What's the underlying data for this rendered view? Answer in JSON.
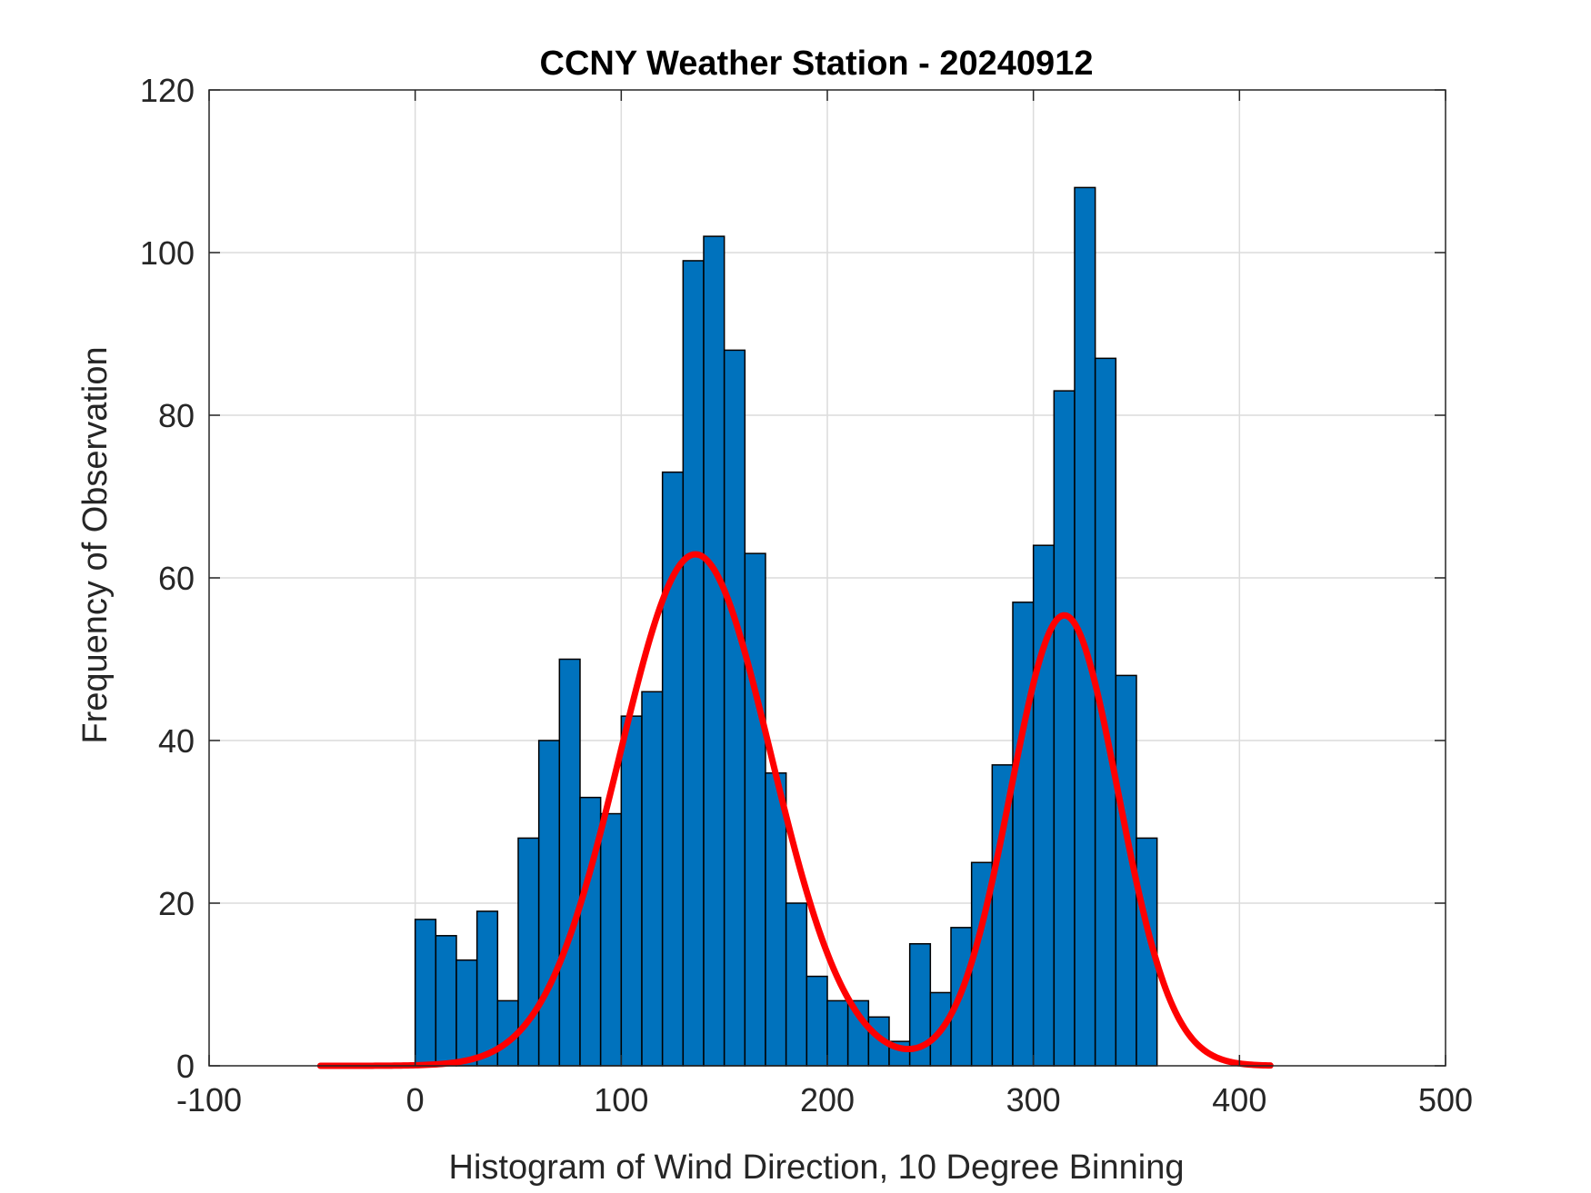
{
  "chart_data": {
    "type": "bar",
    "title": "CCNY Weather Station - 20240912",
    "xlabel": "Histogram of Wind Direction, 10 Degree Binning",
    "ylabel": "Frequency of Observation",
    "xlim": [
      -100,
      500
    ],
    "ylim": [
      0,
      120
    ],
    "x_ticks": [
      -100,
      0,
      100,
      200,
      300,
      400,
      500
    ],
    "y_ticks": [
      0,
      20,
      40,
      60,
      80,
      100,
      120
    ],
    "x_tick_labels": [
      "-100",
      "0",
      "100",
      "200",
      "300",
      "400",
      "500"
    ],
    "y_tick_labels": [
      "0",
      "20",
      "40",
      "60",
      "80",
      "100",
      "120"
    ],
    "grid": true,
    "bin_width": 10,
    "bin_starts": [
      0,
      10,
      20,
      30,
      40,
      50,
      60,
      70,
      80,
      90,
      100,
      110,
      120,
      130,
      140,
      150,
      160,
      170,
      180,
      190,
      200,
      210,
      220,
      230,
      240,
      250,
      260,
      270,
      280,
      290,
      300,
      310,
      320,
      330,
      340,
      350
    ],
    "values": [
      18,
      16,
      13,
      19,
      8,
      28,
      40,
      50,
      33,
      31,
      43,
      46,
      73,
      99,
      102,
      88,
      63,
      36,
      20,
      11,
      8,
      8,
      6,
      3,
      15,
      9,
      17,
      25,
      37,
      57,
      64,
      83,
      108,
      87,
      48,
      28
    ],
    "fit_curve": {
      "type": "line",
      "x_range": [
        -46,
        415
      ],
      "components": [
        {
          "amplitude": 62.9,
          "mean": 136,
          "sigma": 52
        },
        {
          "amplitude": 55.4,
          "mean": 315,
          "sigma": 37
        }
      ]
    },
    "colors": {
      "bar_fill": "#0072BD",
      "bar_edge": "#000000",
      "fit_line": "#FF0000"
    }
  }
}
